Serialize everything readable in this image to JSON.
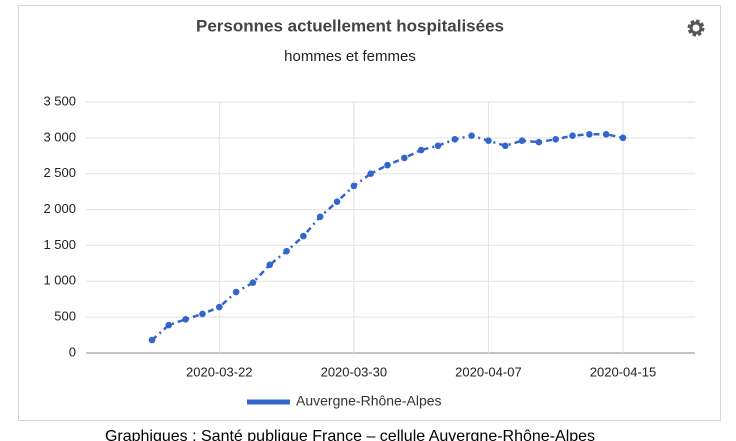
{
  "chart_data": {
    "type": "line",
    "title": "Personnes actuellement hospitalisées",
    "subtitle": "hommes et femmes",
    "x": [
      "2020-03-18",
      "2020-03-19",
      "2020-03-20",
      "2020-03-21",
      "2020-03-22",
      "2020-03-23",
      "2020-03-24",
      "2020-03-25",
      "2020-03-26",
      "2020-03-27",
      "2020-03-28",
      "2020-03-29",
      "2020-03-30",
      "2020-03-31",
      "2020-04-01",
      "2020-04-02",
      "2020-04-03",
      "2020-04-04",
      "2020-04-05",
      "2020-04-06",
      "2020-04-07",
      "2020-04-08",
      "2020-04-09",
      "2020-04-10",
      "2020-04-11",
      "2020-04-12",
      "2020-04-13",
      "2020-04-14",
      "2020-04-15"
    ],
    "xticks": [
      "2020-03-22",
      "2020-03-30",
      "2020-04-07",
      "2020-04-15"
    ],
    "series": [
      {
        "name": "Auvergne-Rhône-Alpes",
        "color": "#3366cc",
        "values": [
          180,
          390,
          470,
          545,
          640,
          850,
          980,
          1230,
          1420,
          1630,
          1900,
          2110,
          2330,
          2500,
          2620,
          2720,
          2830,
          2890,
          2980,
          3030,
          2960,
          2890,
          2960,
          2940,
          2980,
          3030,
          3050,
          3050,
          3000
        ]
      }
    ],
    "ylim": [
      0,
      3500
    ],
    "yticks": [
      0,
      500,
      {
        "value": 1000,
        "label": "1 000"
      },
      {
        "value": 1500,
        "label": "1 500"
      },
      {
        "value": 2000,
        "label": "2 000"
      },
      {
        "value": 2500,
        "label": "2 500"
      },
      {
        "value": 3000,
        "label": "3 000"
      },
      {
        "value": 3500,
        "label": "3 500"
      }
    ],
    "grid": true,
    "legend": "bottom",
    "source": "Graphiques : Santé publique France – cellule Auvergne-Rhône-Alpes"
  }
}
